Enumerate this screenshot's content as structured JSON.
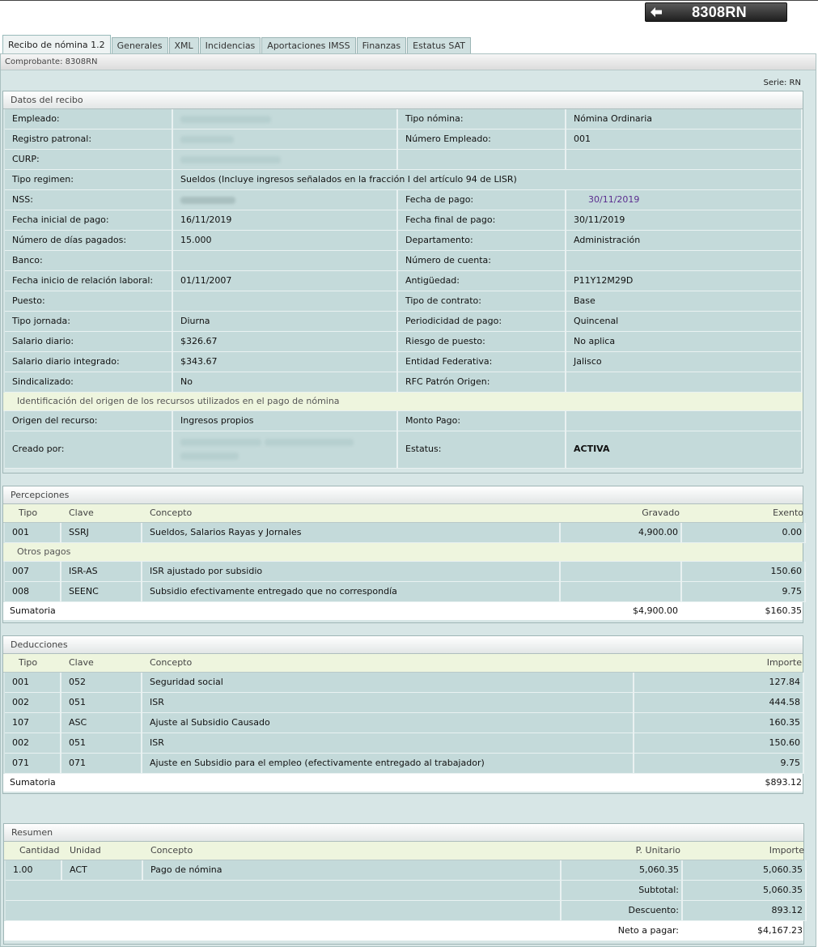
{
  "topbar": {
    "title": "8308RN",
    "back_icon": "arrow-left-icon"
  },
  "tabs": [
    "Recibo de nómina 1.2",
    "Generales",
    "XML",
    "Incidencias",
    "Aportaciones IMSS",
    "Finanzas",
    "Estatus SAT"
  ],
  "comprobante": "Comprobante: 8308RN",
  "serie": "Serie: RN",
  "datos": {
    "title": "Datos del recibo",
    "empleado_label": "Empleado:",
    "tipo_nomina_label": "Tipo nómina:",
    "tipo_nomina": "Nómina Ordinaria",
    "registro_label": "Registro patronal:",
    "num_empleado_label": "Número Empleado:",
    "num_empleado": "001",
    "curp_label": "CURP:",
    "tipo_regimen_label": "Tipo regimen:",
    "tipo_regimen": "Sueldos (Incluye ingresos señalados en la fracción I del artículo 94 de LISR)",
    "nss_label": "NSS:",
    "fecha_pago_label": "Fecha de pago:",
    "fecha_pago": "30/11/2019",
    "fecha_inicial_label": "Fecha inicial de pago:",
    "fecha_inicial": "16/11/2019",
    "fecha_final_label": "Fecha final de pago:",
    "fecha_final": "30/11/2019",
    "dias_label": "Número de días pagados:",
    "dias": "15.000",
    "departamento_label": "Departamento:",
    "departamento": "Administración",
    "banco_label": "Banco:",
    "cuenta_label": "Número de cuenta:",
    "inicio_relacion_label": "Fecha inicio de relación laboral:",
    "inicio_relacion": "01/11/2007",
    "antiguedad_label": "Antigüedad:",
    "antiguedad": "P11Y12M29D",
    "puesto_label": "Puesto:",
    "tipo_contrato_label": "Tipo de contrato:",
    "tipo_contrato": "Base",
    "tipo_jornada_label": "Tipo jornada:",
    "tipo_jornada": "Diurna",
    "periodicidad_label": "Periodicidad de pago:",
    "periodicidad": "Quincenal",
    "salario_diario_label": "Salario diario:",
    "salario_diario": "$326.67",
    "riesgo_label": "Riesgo de puesto:",
    "riesgo": "No aplica",
    "sdi_label": "Salario diario integrado:",
    "sdi": "$343.67",
    "entidad_label": "Entidad Federativa:",
    "entidad": "Jalisco",
    "sindicalizado_label": "Sindicalizado:",
    "sindicalizado": "No",
    "rfc_origen_label": "RFC Patrón Origen:",
    "origen_recursos_heading": "Identificación del origen de los recursos utilizados en el pago de nómina",
    "origen_label": "Origen del recurso:",
    "origen": "Ingresos propios",
    "monto_pago_label": "Monto Pago:",
    "creado_por_label": "Creado por:",
    "estatus_label": "Estatus:",
    "estatus": "ACTIVA"
  },
  "percepciones": {
    "title": "Percepciones",
    "headers": [
      "Tipo",
      "Clave",
      "Concepto",
      "Gravado",
      "Exento"
    ],
    "rows": [
      {
        "tipo": "001",
        "clave": "SSRJ",
        "concepto": "Sueldos, Salarios Rayas y Jornales",
        "gravado": "4,900.00",
        "exento": "0.00"
      }
    ],
    "otros_pagos_label": "Otros pagos",
    "otros": [
      {
        "tipo": "007",
        "clave": "ISR-AS",
        "concepto": "ISR ajustado por subsidio",
        "gravado": "",
        "exento": "150.60"
      },
      {
        "tipo": "008",
        "clave": "SEENC",
        "concepto": "Subsidio efectivamente entregado que no correspondía",
        "gravado": "",
        "exento": "9.75"
      }
    ],
    "sumatoria_label": "Sumatoria",
    "sum_gravado": "$4,900.00",
    "sum_exento": "$160.35"
  },
  "deducciones": {
    "title": "Deducciones",
    "headers": [
      "Tipo",
      "Clave",
      "Concepto",
      "Importe"
    ],
    "rows": [
      {
        "tipo": "001",
        "clave": "052",
        "concepto": "Seguridad social",
        "importe": "127.84"
      },
      {
        "tipo": "002",
        "clave": "051",
        "concepto": "ISR",
        "importe": "444.58"
      },
      {
        "tipo": "107",
        "clave": "ASC",
        "concepto": "Ajuste al Subsidio Causado",
        "importe": "160.35"
      },
      {
        "tipo": "002",
        "clave": "051",
        "concepto": "ISR",
        "importe": "150.60"
      },
      {
        "tipo": "071",
        "clave": "071",
        "concepto": "Ajuste en Subsidio para el empleo (efectivamente entregado al trabajador)",
        "importe": "9.75"
      }
    ],
    "sumatoria_label": "Sumatoria",
    "sum_importe": "$893.12"
  },
  "resumen": {
    "title": "Resumen",
    "headers": [
      "Cantidad",
      "Unidad",
      "Concepto",
      "P. Unitario",
      "Importe"
    ],
    "rows": [
      {
        "cantidad": "1.00",
        "unidad": "ACT",
        "concepto": "Pago de nómina",
        "p_unitario": "5,060.35",
        "importe": "5,060.35"
      }
    ],
    "subtotal_label": "Subtotal:",
    "subtotal": "5,060.35",
    "descuento_label": "Descuento:",
    "descuento": "893.12",
    "neto_label": "Neto a pagar:",
    "neto": "$4,167.23"
  }
}
